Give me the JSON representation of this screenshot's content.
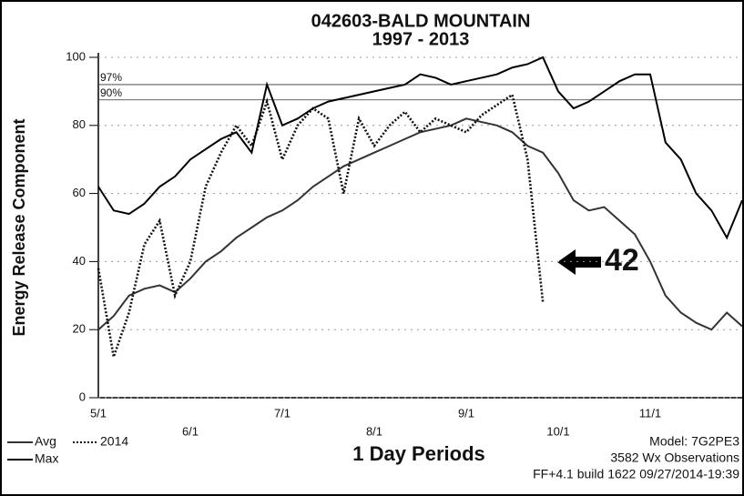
{
  "chart_data": {
    "type": "line",
    "title": "042603-BALD MOUNTAIN",
    "subtitle": "1997 - 2013",
    "y_label": "Energy Release Component",
    "x_label": "1 Day Periods",
    "notes": [
      "Model: 7G2PE3",
      "3582 Wx Observations",
      "FF+4.1 build 1622 09/27/2014-19:39"
    ],
    "annotation": "42",
    "categories": [
      "5/1",
      null,
      null,
      null,
      null,
      null,
      "6/1",
      null,
      null,
      null,
      null,
      null,
      "7/1",
      null,
      null,
      null,
      null,
      null,
      "8/1",
      null,
      null,
      null,
      null,
      null,
      "9/1",
      null,
      null,
      null,
      null,
      null,
      "10/1",
      null,
      null,
      null,
      null,
      null,
      "11/1",
      null,
      null,
      null,
      null,
      null,
      null
    ],
    "series": [
      {
        "name": "Avg",
        "color": "#333333",
        "style": "solid",
        "values": [
          20,
          24,
          30,
          32,
          33,
          31,
          35,
          40,
          43,
          47,
          50,
          53,
          55,
          58,
          62,
          65,
          68,
          70,
          72,
          74,
          76,
          78,
          79,
          80,
          82,
          81,
          80,
          78,
          74,
          72,
          66,
          58,
          55,
          56,
          52,
          48,
          40,
          30,
          25,
          22,
          20,
          25,
          21
        ]
      },
      {
        "name": "2014",
        "color": "#111111",
        "style": "dotted",
        "values": [
          38,
          12,
          25,
          45,
          52,
          30,
          40,
          62,
          72,
          80,
          74,
          87,
          70,
          80,
          85,
          82,
          60,
          82,
          74,
          80,
          84,
          78,
          82,
          80,
          78,
          83,
          86,
          89,
          70,
          28,
          null,
          null,
          null,
          null,
          null,
          null,
          null,
          null,
          null,
          null,
          null,
          null,
          null
        ]
      },
      {
        "name": "Max",
        "color": "#000000",
        "style": "solid",
        "values": [
          62,
          55,
          54,
          57,
          62,
          65,
          70,
          73,
          76,
          78,
          72,
          92,
          80,
          82,
          85,
          87,
          88,
          89,
          90,
          91,
          92,
          95,
          94,
          92,
          93,
          94,
          95,
          97,
          98,
          100,
          90,
          85,
          87,
          90,
          93,
          95,
          95,
          75,
          70,
          60,
          55,
          47,
          58
        ]
      }
    ],
    "reference_lines": [
      {
        "label": "97%",
        "value": 92
      },
      {
        "label": "90%",
        "value": 87.5
      }
    ],
    "ylim": [
      0,
      100
    ],
    "yticks": [
      0,
      20,
      40,
      60,
      80,
      100
    ],
    "grid": true
  }
}
